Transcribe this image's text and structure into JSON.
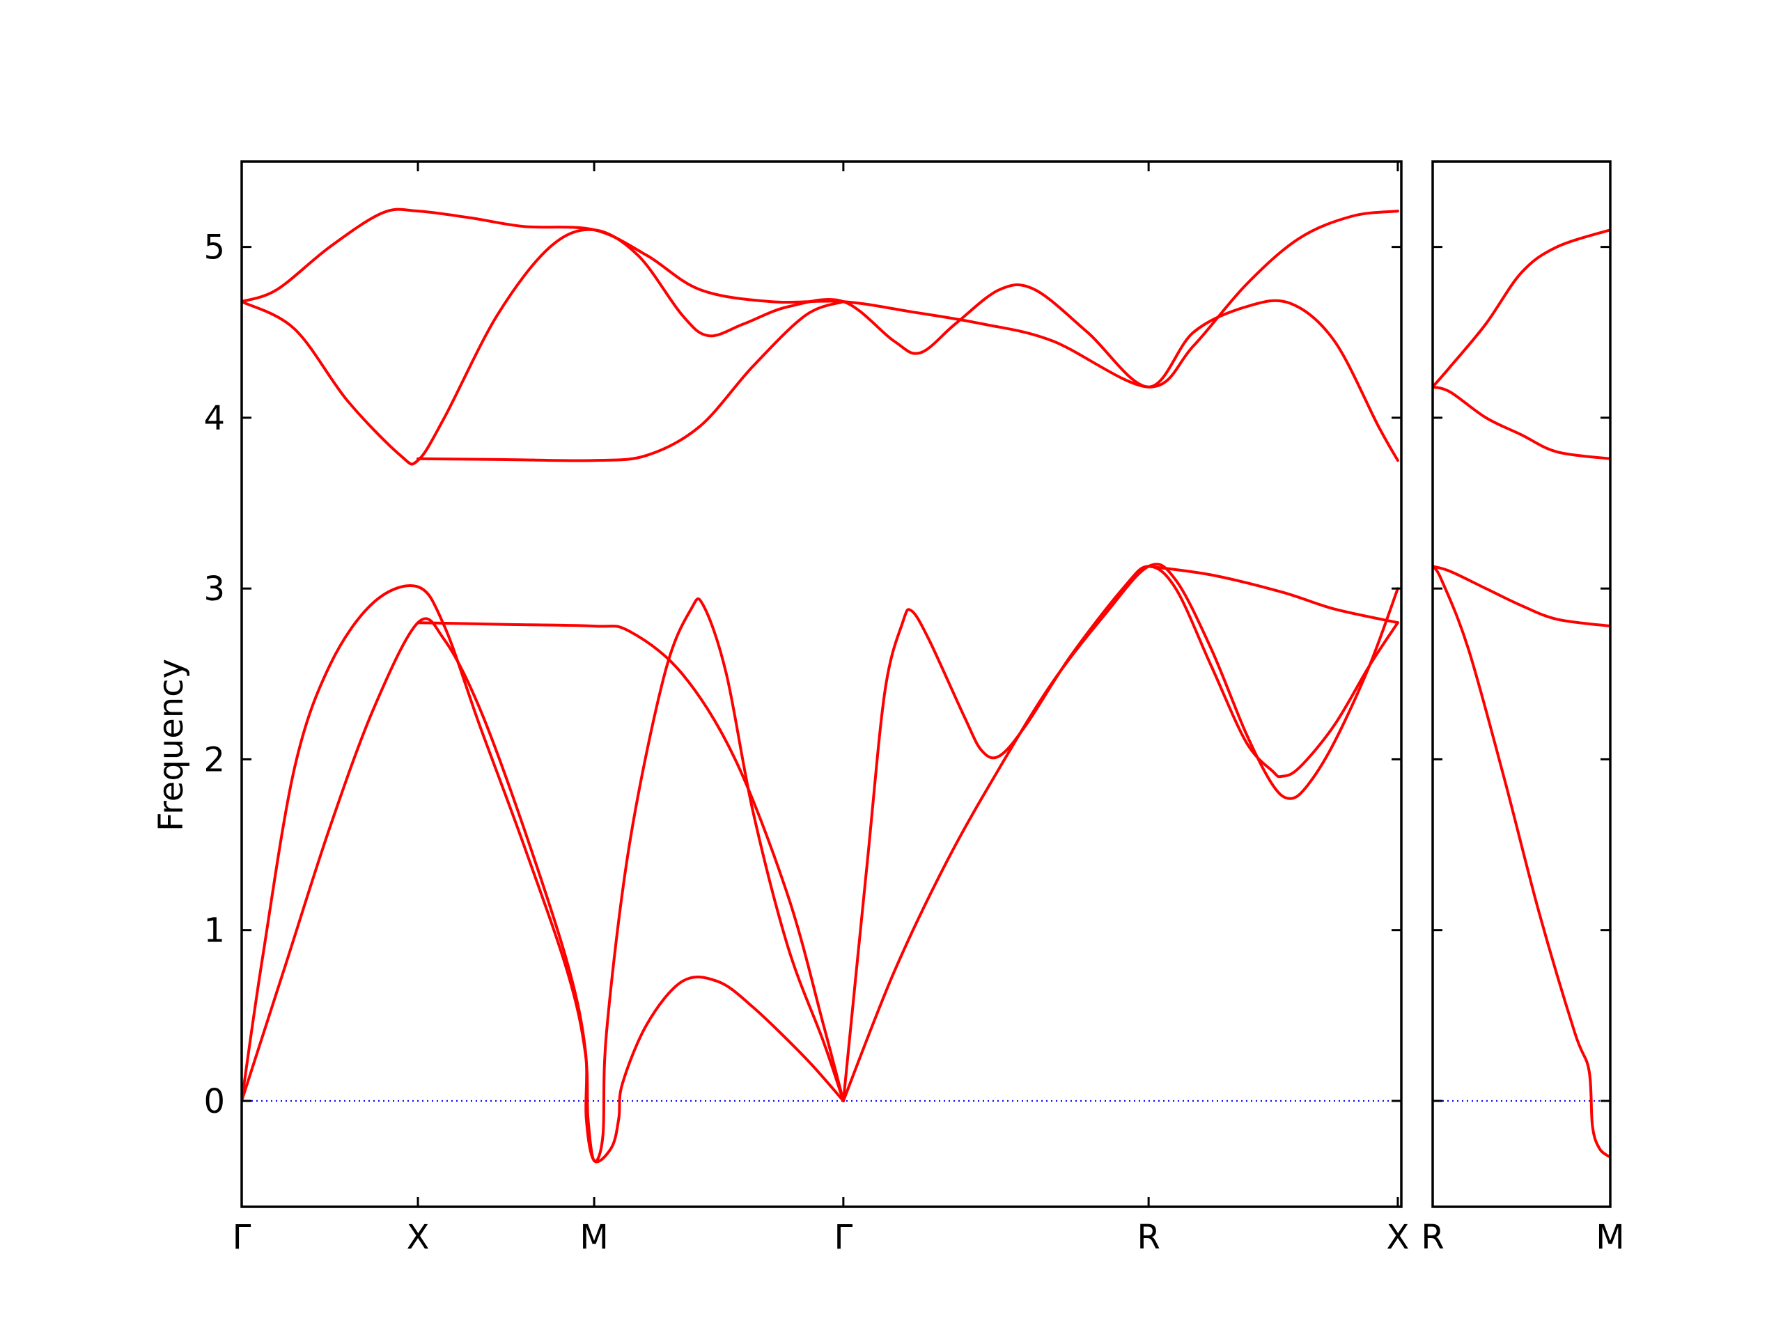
{
  "chart_data": {
    "type": "line",
    "ylabel": "Frequency",
    "ylim": [
      -0.62,
      5.5
    ],
    "yticks": [
      0,
      1,
      2,
      3,
      4,
      5
    ],
    "grid": false,
    "band_color": "#ff0000",
    "zero_line_color": "#0000ff",
    "panels": [
      {
        "name": "left-panel",
        "x_range": [
          0,
          6.58
        ],
        "xticks": [
          {
            "label": "Γ",
            "x": 0
          },
          {
            "label": "X",
            "x": 1
          },
          {
            "label": "M",
            "x": 2
          },
          {
            "label": "Γ",
            "x": 3.414
          },
          {
            "label": "R",
            "x": 5.146
          },
          {
            "label": "X",
            "x": 6.56
          }
        ],
        "series": [
          {
            "values": [
              [
                0,
                0
              ],
              [
                0.12,
                0.85
              ],
              [
                0.3,
                1.95
              ],
              [
                0.5,
                2.55
              ],
              [
                0.75,
                2.92
              ],
              [
                1,
                3.01
              ],
              [
                1.15,
                2.78
              ],
              [
                1.35,
                2.2
              ],
              [
                1.6,
                1.5
              ],
              [
                1.85,
                0.75
              ],
              [
                1.95,
                0.28
              ],
              [
                1.965,
                -0.1
              ],
              [
                2,
                -0.35
              ],
              [
                2.05,
                -0.2
              ],
              [
                2.07,
                0.4
              ],
              [
                2.2,
                1.5
              ],
              [
                2.4,
                2.5
              ],
              [
                2.55,
                2.88
              ],
              [
                2.62,
                2.9
              ],
              [
                2.75,
                2.5
              ],
              [
                2.9,
                1.7
              ],
              [
                3.1,
                0.9
              ],
              [
                3.3,
                0.35
              ],
              [
                3.414,
                0
              ]
            ]
          },
          {
            "values": [
              [
                0,
                0
              ],
              [
                0.25,
                0.8
              ],
              [
                0.5,
                1.6
              ],
              [
                0.75,
                2.3
              ],
              [
                1,
                2.8
              ],
              [
                1.15,
                2.7
              ],
              [
                1.35,
                2.3
              ],
              [
                1.6,
                1.6
              ],
              [
                1.85,
                0.8
              ],
              [
                1.95,
                0.3
              ],
              [
                1.955,
                -0.1
              ],
              [
                2,
                -0.35
              ],
              [
                2.1,
                -0.27
              ],
              [
                2.14,
                -0.1
              ],
              [
                2.16,
                0.1
              ],
              [
                2.3,
                0.45
              ],
              [
                2.5,
                0.7
              ],
              [
                2.7,
                0.7
              ],
              [
                2.9,
                0.55
              ],
              [
                3.2,
                0.25
              ],
              [
                3.414,
                0
              ]
            ]
          },
          {
            "values": [
              [
                1,
                2.8
              ],
              [
                1.5,
                2.79
              ],
              [
                2,
                2.78
              ],
              [
                2.2,
                2.75
              ],
              [
                2.5,
                2.5
              ],
              [
                2.8,
                2
              ],
              [
                3.1,
                1.2
              ],
              [
                3.3,
                0.45
              ],
              [
                3.414,
                0
              ]
            ]
          },
          {
            "values": [
              [
                0,
                4.68
              ],
              [
                0.2,
                4.75
              ],
              [
                0.5,
                5.0
              ],
              [
                0.8,
                5.2
              ],
              [
                1,
                5.21
              ],
              [
                1.3,
                5.17
              ],
              [
                1.6,
                5.12
              ],
              [
                2,
                5.1
              ],
              [
                2.3,
                4.95
              ],
              [
                2.6,
                4.75
              ],
              [
                3.0,
                4.68
              ],
              [
                3.414,
                4.68
              ],
              [
                3.8,
                4.62
              ],
              [
                4.2,
                4.55
              ],
              [
                4.6,
                4.45
              ],
              [
                5.146,
                4.18
              ],
              [
                5.4,
                4.42
              ],
              [
                5.7,
                4.78
              ],
              [
                6.0,
                5.05
              ],
              [
                6.3,
                5.18
              ],
              [
                6.56,
                5.21
              ]
            ]
          },
          {
            "values": [
              [
                0,
                4.68
              ],
              [
                0.3,
                4.52
              ],
              [
                0.6,
                4.1
              ],
              [
                0.9,
                3.78
              ],
              [
                1,
                3.75
              ],
              [
                1.15,
                4.0
              ],
              [
                1.45,
                4.6
              ],
              [
                1.75,
                5.0
              ],
              [
                2,
                5.1
              ],
              [
                2.25,
                4.95
              ],
              [
                2.5,
                4.6
              ],
              [
                2.65,
                4.48
              ],
              [
                2.85,
                4.55
              ],
              [
                3.1,
                4.65
              ],
              [
                3.414,
                4.68
              ],
              [
                3.7,
                4.45
              ],
              [
                3.85,
                4.38
              ],
              [
                4.05,
                4.55
              ],
              [
                4.3,
                4.75
              ],
              [
                4.5,
                4.75
              ],
              [
                4.8,
                4.5
              ],
              [
                5.146,
                4.18
              ],
              [
                5.4,
                4.5
              ],
              [
                5.7,
                4.65
              ],
              [
                5.95,
                4.67
              ],
              [
                6.2,
                4.45
              ],
              [
                6.45,
                3.95
              ],
              [
                6.56,
                3.75
              ]
            ]
          },
          {
            "values": [
              [
                1,
                3.76
              ],
              [
                1.5,
                3.755
              ],
              [
                2,
                3.75
              ],
              [
                2.3,
                3.78
              ],
              [
                2.6,
                3.95
              ],
              [
                2.9,
                4.3
              ],
              [
                3.2,
                4.6
              ],
              [
                3.414,
                4.68
              ]
            ]
          },
          {
            "values": [
              [
                3.414,
                0
              ],
              [
                3.7,
                0.75
              ],
              [
                4.0,
                1.4
              ],
              [
                4.3,
                1.95
              ],
              [
                4.6,
                2.45
              ],
              [
                4.9,
                2.85
              ],
              [
                5.146,
                3.13
              ],
              [
                5.3,
                3.05
              ],
              [
                5.5,
                2.65
              ],
              [
                5.7,
                2.15
              ],
              [
                5.85,
                1.85
              ],
              [
                5.95,
                1.77
              ],
              [
                6.05,
                1.85
              ],
              [
                6.2,
                2.1
              ],
              [
                6.4,
                2.55
              ],
              [
                6.56,
                3.0
              ]
            ]
          },
          {
            "values": [
              [
                3.414,
                0
              ],
              [
                3.55,
                1.4
              ],
              [
                3.65,
                2.4
              ],
              [
                3.75,
                2.8
              ],
              [
                3.8,
                2.87
              ],
              [
                3.9,
                2.7
              ],
              [
                4.1,
                2.25
              ],
              [
                4.2,
                2.05
              ],
              [
                4.3,
                2.02
              ],
              [
                4.45,
                2.2
              ],
              [
                4.7,
                2.6
              ],
              [
                5.0,
                3.0
              ],
              [
                5.146,
                3.13
              ],
              [
                5.3,
                3.0
              ],
              [
                5.5,
                2.55
              ],
              [
                5.7,
                2.1
              ],
              [
                5.85,
                1.93
              ],
              [
                5.9,
                1.9
              ],
              [
                6.0,
                1.95
              ],
              [
                6.2,
                2.2
              ],
              [
                6.4,
                2.55
              ],
              [
                6.56,
                2.8
              ]
            ]
          },
          {
            "values": [
              [
                5.146,
                3.13
              ],
              [
                5.5,
                3.08
              ],
              [
                5.9,
                2.98
              ],
              [
                6.2,
                2.88
              ],
              [
                6.56,
                2.8
              ]
            ]
          }
        ]
      },
      {
        "name": "right-panel",
        "x_range": [
          0,
          1
        ],
        "xticks": [
          {
            "label": "R",
            "x": 0
          },
          {
            "label": "M",
            "x": 1
          }
        ],
        "series": [
          {
            "values": [
              [
                0,
                3.13
              ],
              [
                0.05,
                3.05
              ],
              [
                0.2,
                2.65
              ],
              [
                0.4,
                1.9
              ],
              [
                0.6,
                1.1
              ],
              [
                0.8,
                0.4
              ],
              [
                0.88,
                0.18
              ],
              [
                0.9,
                -0.15
              ],
              [
                0.94,
                -0.28
              ],
              [
                1,
                -0.33
              ]
            ]
          },
          {
            "values": [
              [
                0,
                3.13
              ],
              [
                0.1,
                3.1
              ],
              [
                0.3,
                3.0
              ],
              [
                0.5,
                2.9
              ],
              [
                0.7,
                2.82
              ],
              [
                1,
                2.78
              ]
            ]
          },
          {
            "values": [
              [
                0,
                4.18
              ],
              [
                0.1,
                4.15
              ],
              [
                0.3,
                4.0
              ],
              [
                0.5,
                3.9
              ],
              [
                0.7,
                3.8
              ],
              [
                1,
                3.76
              ]
            ]
          },
          {
            "values": [
              [
                0,
                4.18
              ],
              [
                0.1,
                4.3
              ],
              [
                0.3,
                4.55
              ],
              [
                0.5,
                4.85
              ],
              [
                0.7,
                5.0
              ],
              [
                1,
                5.1
              ]
            ]
          }
        ]
      }
    ]
  }
}
